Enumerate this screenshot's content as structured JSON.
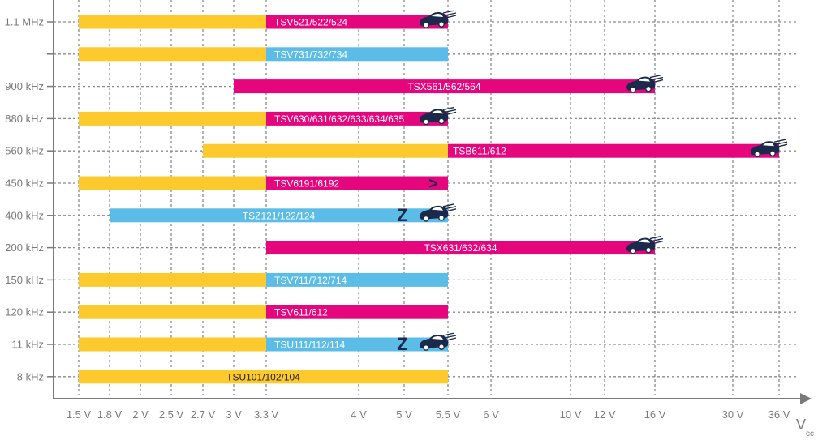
{
  "chart_data": {
    "type": "bar",
    "subtype": "range-gantt",
    "title": "",
    "xlabel": "V",
    "xlabel_sub": "cc",
    "ylabel": "",
    "x_ticks": [
      "1.5 V",
      "1.8 V",
      "2 V",
      "2.5 V",
      "2.7 V",
      "3 V",
      "3.3 V",
      "4 V",
      "5 V",
      "5.5 V",
      "6 V",
      "10 V",
      "12 V",
      "16 V",
      "30 V",
      "36 V"
    ],
    "grid": true,
    "colors": {
      "yellow": "#FDCA2E",
      "magenta": "#E5067E",
      "blue": "#5BBCE8"
    },
    "rows": [
      {
        "category": "1.1 MHz",
        "segments": [
          {
            "from": "1.5 V",
            "to": "3.3 V",
            "color": "yellow"
          },
          {
            "from": "3.3 V",
            "to": "5.5 V",
            "color": "magenta"
          }
        ],
        "label": "TSV521/522/524",
        "icon": "car"
      },
      {
        "category": "",
        "segments": [
          {
            "from": "1.5 V",
            "to": "3.3 V",
            "color": "yellow"
          },
          {
            "from": "3.3 V",
            "to": "5.5 V",
            "color": "blue"
          }
        ],
        "label": "TSV731/732/734"
      },
      {
        "category": "900 kHz",
        "segments": [
          {
            "from": "3 V",
            "to": "16 V",
            "color": "magenta"
          }
        ],
        "label": "TSX561/562/564",
        "icon": "car"
      },
      {
        "category": "880 kHz",
        "segments": [
          {
            "from": "1.5 V",
            "to": "3.3 V",
            "color": "yellow"
          },
          {
            "from": "3.3 V",
            "to": "5.5 V",
            "color": "magenta"
          }
        ],
        "label": "TSV630/631/632/633/634/635",
        "icon": "car"
      },
      {
        "category": "560 kHz",
        "segments": [
          {
            "from": "2.7 V",
            "to": "5.5 V",
            "color": "yellow"
          },
          {
            "from": "5.5 V",
            "to": "36 V",
            "color": "magenta"
          }
        ],
        "label": "TSB611/612",
        "icon": "car"
      },
      {
        "category": "450 kHz",
        "segments": [
          {
            "from": "1.5 V",
            "to": "3.3 V",
            "color": "yellow"
          },
          {
            "from": "3.3 V",
            "to": "5.5 V",
            "color": "magenta"
          }
        ],
        "label": "TSV6191/6192",
        "marker": ">"
      },
      {
        "category": "400 kHz",
        "segments": [
          {
            "from": "1.8 V",
            "to": "5.5 V",
            "color": "blue"
          }
        ],
        "label": "TSZ121/122/124",
        "marker": "Z",
        "icon": "car"
      },
      {
        "category": "200 kHz",
        "segments": [
          {
            "from": "3.3 V",
            "to": "16 V",
            "color": "magenta"
          }
        ],
        "label": "TSX631/632/634",
        "icon": "car"
      },
      {
        "category": "150 kHz",
        "segments": [
          {
            "from": "1.5 V",
            "to": "3.3 V",
            "color": "yellow"
          },
          {
            "from": "3.3 V",
            "to": "5.5 V",
            "color": "blue"
          }
        ],
        "label": "TSV711/712/714"
      },
      {
        "category": "120 kHz",
        "segments": [
          {
            "from": "1.5 V",
            "to": "3.3 V",
            "color": "yellow"
          },
          {
            "from": "3.3 V",
            "to": "5.5 V",
            "color": "magenta"
          }
        ],
        "label": "TSV611/612"
      },
      {
        "category": "11 kHz",
        "segments": [
          {
            "from": "1.5 V",
            "to": "3.3 V",
            "color": "yellow"
          },
          {
            "from": "3.3 V",
            "to": "5.5 V",
            "color": "blue"
          }
        ],
        "label": "TSU111/112/114",
        "marker": "Z",
        "icon": "car"
      },
      {
        "category": "8 kHz",
        "segments": [
          {
            "from": "1.5 V",
            "to": "5.5 V",
            "color": "yellow"
          }
        ],
        "label": "TSU101/102/104",
        "label_dark": true
      }
    ]
  }
}
